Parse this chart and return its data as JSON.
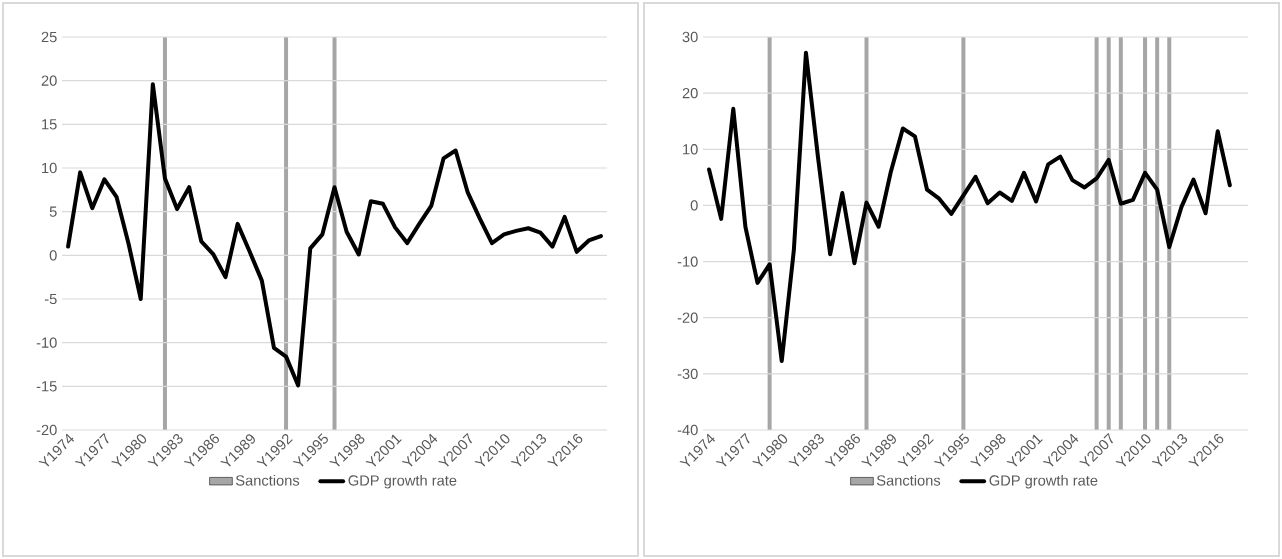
{
  "chart_data": [
    {
      "type": "line",
      "categories": [
        "Y1974",
        null,
        null,
        "Y1977",
        null,
        null,
        "Y1980",
        null,
        null,
        "Y1983",
        null,
        null,
        "Y1986",
        null,
        null,
        "Y1989",
        null,
        null,
        "Y1992",
        null,
        null,
        "Y1995",
        null,
        null,
        "Y1998",
        null,
        null,
        "Y2001",
        null,
        null,
        "Y2004",
        null,
        null,
        "Y2007",
        null,
        null,
        "Y2010",
        null,
        null,
        "Y2013",
        null,
        null,
        "Y2016",
        null,
        null
      ],
      "series": [
        {
          "name": "Sanctions",
          "type": "bar",
          "color": "#a6a6a6",
          "values": [
            null,
            null,
            null,
            null,
            null,
            null,
            null,
            null,
            45,
            null,
            null,
            null,
            null,
            null,
            null,
            null,
            null,
            null,
            45,
            null,
            null,
            null,
            45,
            null,
            null,
            null,
            null,
            null,
            null,
            null,
            null,
            null,
            null,
            null,
            null,
            null,
            null,
            null,
            null,
            null,
            null,
            null,
            null,
            null,
            null
          ],
          "base": [
            null,
            null,
            null,
            null,
            null,
            null,
            null,
            null,
            -20,
            null,
            null,
            null,
            null,
            null,
            null,
            null,
            null,
            null,
            -20,
            null,
            null,
            null,
            -20,
            null,
            null,
            null,
            null,
            null,
            null,
            null,
            null,
            null,
            null,
            null,
            null,
            null,
            null,
            null,
            null,
            null,
            null,
            null,
            null,
            null,
            null
          ]
        },
        {
          "name": "GDP growth rate",
          "color": "#000000",
          "values": [
            1.0,
            9.5,
            5.4,
            8.7,
            6.7,
            1.3,
            -5.0,
            19.6,
            8.8,
            5.3,
            7.8,
            1.6,
            0.1,
            -2.5,
            3.6,
            0.4,
            -2.9,
            -10.6,
            -11.6,
            -14.9,
            0.8,
            2.4,
            7.8,
            2.7,
            0.1,
            6.2,
            5.9,
            3.2,
            1.4,
            3.6,
            5.7,
            11.1,
            12.0,
            7.2,
            4.2,
            1.4,
            2.4,
            2.8,
            3.1,
            2.6,
            1.0,
            4.4,
            0.4,
            1.7,
            2.2
          ]
        }
      ],
      "ylim": [
        -20,
        25
      ],
      "yticks": [
        -20,
        -15,
        -10,
        -5,
        0,
        5,
        10,
        15,
        20,
        25
      ],
      "grid": "y",
      "legend": "bottom",
      "marker": "none"
    },
    {
      "type": "line",
      "categories": [
        "Y1974",
        null,
        null,
        "Y1977",
        null,
        null,
        "Y1980",
        null,
        null,
        "Y1983",
        null,
        null,
        "Y1986",
        null,
        null,
        "Y1989",
        null,
        null,
        "Y1992",
        null,
        null,
        "Y1995",
        null,
        null,
        "Y1998",
        null,
        null,
        "Y2001",
        null,
        null,
        "Y2004",
        null,
        null,
        "Y2007",
        null,
        null,
        "Y2010",
        null,
        null,
        "Y2013",
        null,
        null,
        "Y2016",
        null,
        null
      ],
      "series": [
        {
          "name": "Sanctions",
          "type": "bar",
          "color": "#a6a6a6",
          "values": [
            null,
            null,
            null,
            null,
            null,
            70,
            null,
            null,
            null,
            null,
            null,
            null,
            null,
            70,
            null,
            null,
            null,
            null,
            null,
            null,
            null,
            70,
            null,
            null,
            null,
            null,
            null,
            null,
            null,
            null,
            null,
            null,
            70,
            70,
            70,
            null,
            70,
            70,
            70,
            null,
            null,
            null,
            null,
            null,
            null
          ],
          "base": [
            null,
            null,
            null,
            null,
            null,
            -40,
            null,
            null,
            null,
            null,
            null,
            null,
            null,
            -40,
            null,
            null,
            null,
            null,
            null,
            null,
            null,
            -40,
            null,
            null,
            null,
            null,
            null,
            null,
            null,
            null,
            null,
            null,
            -40,
            -40,
            -40,
            null,
            -40,
            -40,
            -40,
            null,
            null,
            null,
            null,
            null,
            null
          ]
        },
        {
          "name": "GDP growth rate",
          "color": "#000000",
          "values": [
            6.4,
            -2.4,
            17.2,
            -3.8,
            -13.8,
            -10.5,
            -27.7,
            -8.0,
            27.2,
            8.5,
            -8.7,
            2.2,
            -10.3,
            0.5,
            -3.8,
            5.9,
            13.7,
            12.3,
            2.8,
            1.2,
            -1.5,
            1.8,
            5.1,
            0.4,
            2.3,
            0.8,
            5.8,
            0.7,
            7.3,
            8.7,
            4.5,
            3.2,
            4.8,
            8.1,
            0.3,
            1.0,
            5.8,
            2.8,
            -7.4,
            -0.3,
            4.6,
            -1.4,
            13.2,
            3.6,
            null
          ]
        }
      ],
      "ylim": [
        -40,
        30
      ],
      "yticks": [
        -40,
        -30,
        -20,
        -10,
        0,
        10,
        20,
        30
      ],
      "grid": "y",
      "legend": "bottom",
      "marker": "none"
    }
  ]
}
